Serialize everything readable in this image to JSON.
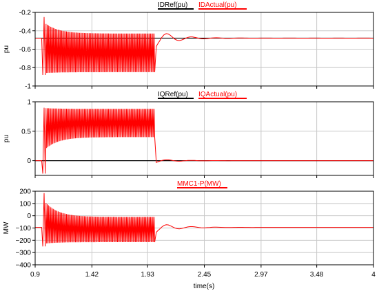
{
  "colors": {
    "ref": "#000000",
    "actual": "#ff0000",
    "grid": "#c8c8c8",
    "frame": "#000000"
  },
  "xlabel": "time(s)",
  "chart_data": [
    {
      "type": "line",
      "ylabel": "pu",
      "ylim": [
        -1,
        -0.2
      ],
      "yticks": [
        -0.2,
        -0.4,
        -0.6,
        -0.8,
        -1
      ],
      "ytick_labels": [
        "-0.2",
        "-0.4",
        "-0.6",
        "-0.8",
        "-1"
      ],
      "xlim": [
        0.9,
        4
      ],
      "xticks": [
        0.9,
        1.42,
        1.93,
        2.45,
        2.97,
        3.48,
        4
      ],
      "xtick_labels": [
        "0.9",
        "1.42",
        "1.93",
        "2.45",
        "2.97",
        "3.48",
        "4"
      ],
      "grid": true,
      "series": [
        {
          "name": "IDRef(pu)",
          "color": "#000000",
          "kind": "const",
          "value": -0.48
        },
        {
          "name": "IDActual(pu)",
          "color": "#ff0000",
          "kind": "oscillation",
          "t_start": 0.97,
          "t_end": 2.0,
          "init": -0.48,
          "upper": -0.43,
          "lower": -0.85,
          "overshoot_high": -0.25,
          "overshoot_low": -0.88,
          "settle_value": -0.48,
          "dip": -0.57
        }
      ]
    },
    {
      "type": "line",
      "ylabel": "pu",
      "ylim": [
        -0.25,
        1
      ],
      "yticks": [
        1,
        0.5,
        0
      ],
      "ytick_labels": [
        "1",
        "0.5",
        "0"
      ],
      "xlim": [
        0.9,
        4
      ],
      "xticks": [
        0.9,
        1.42,
        1.93,
        2.45,
        2.97,
        3.48,
        4
      ],
      "xtick_labels": [
        "0.9",
        "1.42",
        "1.93",
        "2.45",
        "2.97",
        "3.48",
        "4"
      ],
      "grid": true,
      "series": [
        {
          "name": "IQRef(pu)",
          "color": "#000000",
          "kind": "const",
          "value": 0
        },
        {
          "name": "IQActual(pu)",
          "color": "#ff0000",
          "kind": "oscillation",
          "t_start": 0.97,
          "t_end": 2.0,
          "init": 0,
          "upper": 0.88,
          "lower": 0.4,
          "overshoot_high": 0.9,
          "overshoot_low": -0.22,
          "settle_value": 0,
          "dip": -0.03
        }
      ]
    },
    {
      "type": "line",
      "ylabel": "MW",
      "ylim": [
        -400,
        200
      ],
      "yticks": [
        200,
        100,
        0,
        -100,
        -200,
        -300,
        -400
      ],
      "ytick_labels": [
        "200",
        "100",
        "0",
        "−100",
        "−200",
        "−300",
        "−400"
      ],
      "xlim": [
        0.9,
        4
      ],
      "xticks": [
        0.9,
        1.42,
        1.93,
        2.45,
        2.97,
        3.48,
        4
      ],
      "xtick_labels": [
        "0.9",
        "1.42",
        "1.93",
        "2.45",
        "2.97",
        "3.48",
        "4"
      ],
      "grid": true,
      "series": [
        {
          "name": "MMC1-P(MW)",
          "color": "#ff0000",
          "kind": "oscillation",
          "t_start": 0.97,
          "t_end": 2.0,
          "init": -95,
          "upper": -10,
          "lower": -215,
          "overshoot_high": 185,
          "overshoot_low": -250,
          "settle_value": -95,
          "dip": -135
        }
      ]
    }
  ]
}
